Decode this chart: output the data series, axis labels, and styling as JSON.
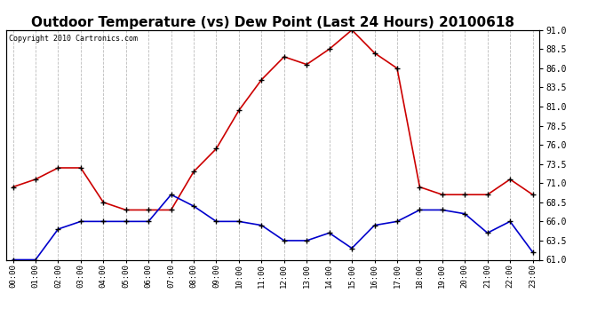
{
  "title": "Outdoor Temperature (vs) Dew Point (Last 24 Hours) 20100618",
  "copyright": "Copyright 2010 Cartronics.com",
  "hours": [
    "00:00",
    "01:00",
    "02:00",
    "03:00",
    "04:00",
    "05:00",
    "06:00",
    "07:00",
    "08:00",
    "09:00",
    "10:00",
    "11:00",
    "12:00",
    "13:00",
    "14:00",
    "15:00",
    "16:00",
    "17:00",
    "18:00",
    "19:00",
    "20:00",
    "21:00",
    "22:00",
    "23:00"
  ],
  "temp": [
    70.5,
    71.5,
    73.0,
    73.0,
    68.5,
    67.5,
    67.5,
    67.5,
    72.5,
    75.5,
    80.5,
    84.5,
    87.5,
    86.5,
    88.5,
    91.0,
    88.0,
    86.0,
    70.5,
    69.5,
    69.5,
    69.5,
    71.5,
    69.5
  ],
  "dew": [
    61.0,
    61.0,
    65.0,
    66.0,
    66.0,
    66.0,
    66.0,
    69.5,
    68.0,
    66.0,
    66.0,
    65.5,
    63.5,
    63.5,
    64.5,
    62.5,
    65.5,
    66.0,
    67.5,
    67.5,
    67.0,
    64.5,
    66.0,
    62.0
  ],
  "temp_color": "#cc0000",
  "dew_color": "#0000cc",
  "ylim": [
    61.0,
    91.0
  ],
  "yticks": [
    61.0,
    63.5,
    66.0,
    68.5,
    71.0,
    73.5,
    76.0,
    78.5,
    81.0,
    83.5,
    86.0,
    88.5,
    91.0
  ],
  "background_color": "#ffffff",
  "plot_bg_color": "#ffffff",
  "grid_color": "#bbbbbb",
  "title_fontsize": 11,
  "copyright_fontsize": 6,
  "marker": "+",
  "marker_size": 5,
  "marker_color": "#000000",
  "line_width": 1.2
}
